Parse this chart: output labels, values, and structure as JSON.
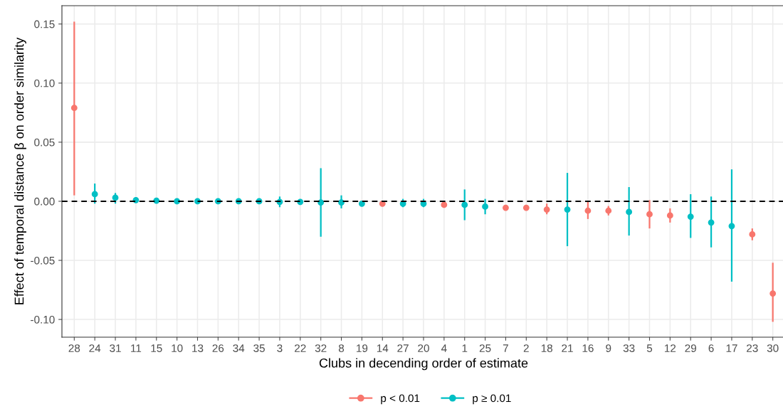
{
  "chart_data": {
    "type": "scatter",
    "xlabel": "Clubs in decending order of estimate",
    "ylabel": "Effect of temporal distance β on order similarity",
    "categories": [
      "28",
      "24",
      "31",
      "11",
      "15",
      "10",
      "13",
      "26",
      "34",
      "35",
      "3",
      "22",
      "32",
      "8",
      "19",
      "14",
      "27",
      "20",
      "4",
      "1",
      "25",
      "7",
      "2",
      "18",
      "21",
      "16",
      "9",
      "33",
      "5",
      "12",
      "29",
      "6",
      "17",
      "23",
      "30"
    ],
    "series": [
      {
        "name": "p < 0.01",
        "color": "#f8766d",
        "values": [
          0.079,
          null,
          null,
          null,
          null,
          null,
          null,
          null,
          null,
          null,
          null,
          null,
          null,
          null,
          null,
          -0.002,
          null,
          null,
          -0.003,
          null,
          null,
          -0.0055,
          -0.0055,
          -0.007,
          null,
          -0.008,
          -0.008,
          null,
          -0.011,
          -0.012,
          null,
          null,
          null,
          -0.028,
          -0.078
        ],
        "errors": [
          [
            0.005,
            0.152
          ],
          null,
          null,
          null,
          null,
          null,
          null,
          null,
          null,
          null,
          null,
          null,
          null,
          null,
          null,
          null,
          null,
          null,
          null,
          null,
          null,
          null,
          null,
          [
            -0.011,
            -0.002
          ],
          null,
          [
            -0.015,
            0.0
          ],
          [
            -0.012,
            -0.004
          ],
          null,
          [
            -0.023,
            0.001
          ],
          [
            -0.018,
            -0.006
          ],
          null,
          null,
          null,
          [
            -0.033,
            -0.023
          ],
          [
            -0.102,
            -0.052
          ]
        ]
      },
      {
        "name": "p ≥ 0.01",
        "color": "#00bfc4",
        "values": [
          null,
          0.006,
          0.003,
          0.001,
          0.0005,
          0.0,
          0.0,
          0.0,
          0.0,
          0.0,
          -0.0005,
          -0.0005,
          -0.001,
          -0.001,
          -0.002,
          null,
          -0.002,
          -0.002,
          null,
          -0.003,
          -0.0045,
          null,
          null,
          null,
          -0.007,
          null,
          null,
          -0.009,
          null,
          null,
          -0.013,
          -0.018,
          -0.021,
          null,
          null
        ],
        "errors": [
          null,
          [
            -0.002,
            0.015
          ],
          [
            -0.002,
            0.007
          ],
          null,
          null,
          null,
          null,
          null,
          null,
          null,
          [
            -0.005,
            0.004
          ],
          null,
          [
            -0.03,
            0.028
          ],
          [
            -0.006,
            0.005
          ],
          null,
          null,
          [
            -0.005,
            0.002
          ],
          [
            -0.005,
            0.002
          ],
          null,
          [
            -0.016,
            0.01
          ],
          [
            -0.011,
            0.002
          ],
          null,
          null,
          null,
          [
            -0.038,
            0.024
          ],
          null,
          null,
          [
            -0.029,
            0.012
          ],
          null,
          null,
          [
            -0.031,
            0.006
          ],
          [
            -0.039,
            0.004
          ],
          [
            -0.068,
            0.027
          ],
          null,
          null
        ]
      }
    ],
    "ylim": [
      -0.115,
      0.1655
    ],
    "yticks": [
      {
        "value": -0.1,
        "label": "-0.10"
      },
      {
        "value": -0.05,
        "label": "-0.05"
      },
      {
        "value": 0.0,
        "label": "0.00"
      },
      {
        "value": 0.05,
        "label": "0.05"
      },
      {
        "value": 0.1,
        "label": "0.10"
      },
      {
        "value": 0.15,
        "label": "0.15"
      }
    ],
    "ref_lines": [
      {
        "axis": "y",
        "value": 0,
        "color": "#000000",
        "line_style": "dashed"
      }
    ],
    "grid": true,
    "legend": "bottom",
    "marker": "circle"
  }
}
